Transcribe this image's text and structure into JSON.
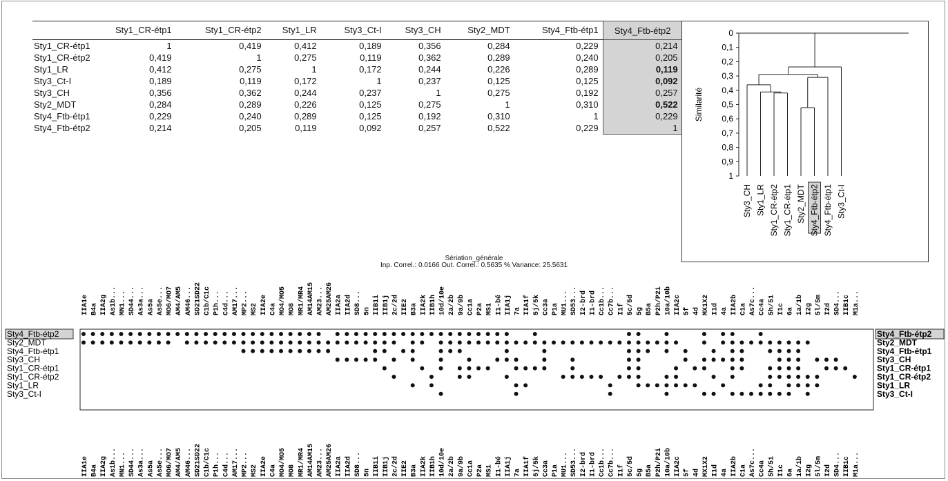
{
  "table": {
    "columns": [
      "Sty1_CR-étp1",
      "Sty1_CR-étp2",
      "Sty1_LR",
      "Sty3_Ct-I",
      "Sty3_CH",
      "Sty2_MDT",
      "Sty4_Ftb-étp1",
      "Sty4_Ftb-étp2"
    ],
    "highlight_column": 7,
    "rows": [
      {
        "label": "Sty1_CR-étp1",
        "cells": [
          "1",
          "0,419",
          "0,412",
          "0,189",
          "0,356",
          "0,284",
          "0,229",
          "0,214"
        ]
      },
      {
        "label": "Sty1_CR-étp2",
        "cells": [
          "0,419",
          "1",
          "0,275",
          "0,119",
          "0,362",
          "0,289",
          "0,240",
          "0,205"
        ]
      },
      {
        "label": "Sty1_LR",
        "cells": [
          "0,412",
          "0,275",
          "1",
          "0,172",
          "0,244",
          "0,226",
          "0,289",
          "0,119"
        ]
      },
      {
        "label": "Sty3_Ct-I",
        "cells": [
          "0,189",
          "0,119",
          "0,172",
          "1",
          "0,237",
          "0,125",
          "0,125",
          "0,092"
        ]
      },
      {
        "label": "Sty3_CH",
        "cells": [
          "0,356",
          "0,362",
          "0,244",
          "0,237",
          "1",
          "0,275",
          "0,192",
          "0,257"
        ]
      },
      {
        "label": "Sty2_MDT",
        "cells": [
          "0,284",
          "0,289",
          "0,226",
          "0,125",
          "0,275",
          "1",
          "0,310",
          "0,522"
        ]
      },
      {
        "label": "Sty4_Ftb-étp1",
        "cells": [
          "0,229",
          "0,240",
          "0,289",
          "0,125",
          "0,192",
          "0,310",
          "1",
          "0,229"
        ]
      },
      {
        "label": "Sty4_Ftb-étp2",
        "cells": [
          "0,214",
          "0,205",
          "0,119",
          "0,092",
          "0,257",
          "0,522",
          "0,229",
          "1"
        ]
      }
    ],
    "bold_in_highlight": [
      2,
      3,
      5
    ]
  },
  "chart_data": [
    {
      "type": "dendrogram",
      "ylabel": "Similarité",
      "ylim": [
        0,
        1
      ],
      "yticks": [
        "0",
        "0,1",
        "0,2",
        "0,3",
        "0,4",
        "0,5",
        "0,6",
        "0,7",
        "0,8",
        "0,9",
        "1"
      ],
      "leaves": [
        "Sty3_CH",
        "Sty1_LR",
        "Sty1_CR-étp2",
        "Sty1_CR-étp1",
        "Sty2_MDT",
        "Sty4_Ftb-étp2",
        "Sty4_Ftb-étp1",
        "Sty3_Ct-I"
      ],
      "highlight_leaf": "Sty4_Ftb-étp2",
      "merges": [
        {
          "left": "Sty1_CR-étp2",
          "right": "Sty1_CR-étp1",
          "height": 0.419
        },
        {
          "left": "Sty1_LR",
          "right": "c1",
          "height": 0.412
        },
        {
          "left": "Sty3_CH",
          "right": "c2",
          "height": 0.362
        },
        {
          "left": "Sty2_MDT",
          "right": "Sty4_Ftb-étp2",
          "height": 0.522
        },
        {
          "left": "c4",
          "right": "Sty4_Ftb-étp1",
          "height": 0.31
        },
        {
          "left": "c3",
          "right": "c5",
          "height": 0.289
        },
        {
          "left": "c6",
          "right": "Sty3_Ct-I",
          "height": 0.237
        }
      ]
    },
    {
      "type": "seriation",
      "title": "Sériation_générale",
      "subtitle": "Inp. Correl.: 0.0166 Out. Correl.: 0.5635 % Variance: 25.5631",
      "highlight_row": "Sty4_Ftb-étp2",
      "columns": [
        "IIA1e",
        "B4a",
        "IIA2g",
        "As1b...",
        "MN1...",
        "SD44...",
        "As3a...",
        "As5a",
        "As5e...",
        "MO6/MO7",
        "AM4/AM5",
        "AM46...",
        "SD21SD22",
        "C1b/C1c",
        "P1h...",
        "C4d...",
        "AM17...",
        "MP2...",
        "MS2",
        "IIA2e",
        "C4a",
        "MO4/MO5",
        "MO8",
        "MR1/MR4",
        "AM14AM15",
        "AM23...",
        "AM25AM26",
        "IIA2a",
        "IIA2d",
        "SD8...",
        "5n",
        "IIB1i",
        "IIB1j",
        "2c/2d",
        "IIE2",
        "B3a",
        "IIA2k",
        "IIB1h",
        "10d/10e",
        "2a/2b",
        "9a/9b",
        "Cc1a",
        "P2a",
        "MS1",
        "I1-bé",
        "IIA1j",
        "7a",
        "IIA1f",
        "5j/5k",
        "Cc3a",
        "P1a",
        "MU1...",
        "SD53...",
        "I2-brd",
        "I1-brd",
        "Cc1b...",
        "Cc7b...",
        "I1f",
        "5c/5d",
        "5g",
        "B5a",
        "P2h/P2i",
        "10a/10b",
        "IIA2c",
        "5f",
        "4d",
        "MX1X2",
        "I1d",
        "4a",
        "IIA2b",
        "C1a",
        "As7c...",
        "Cc4a",
        "5h/5i",
        "I1c",
        "6a",
        "1a/1b",
        "I2g",
        "5l/5m",
        "I2d",
        "SD4...",
        "IIB1c",
        "M1a..."
      ],
      "rows": [
        {
          "name": "Sty4_Ftb-étp2",
          "cols": [
            0,
            1,
            2,
            3,
            4,
            5,
            6,
            7,
            8,
            9,
            10,
            11,
            12,
            13,
            14,
            15,
            16,
            17,
            18,
            19,
            20,
            21,
            22,
            23,
            24,
            25,
            27,
            28,
            29,
            30,
            31,
            32,
            33,
            34,
            35,
            36,
            37,
            38,
            39,
            40,
            41,
            42,
            43,
            44,
            45,
            48,
            58,
            59,
            62,
            66,
            68,
            69,
            72
          ]
        },
        {
          "name": "Sty2_MDT",
          "cols": [
            0,
            1,
            2,
            3,
            4,
            5,
            6,
            7,
            8,
            9,
            11,
            12,
            13,
            14,
            15,
            16,
            17,
            18,
            19,
            20,
            21,
            22,
            23,
            24,
            25,
            26,
            27,
            28,
            29,
            30,
            31,
            32,
            33,
            35,
            36,
            38,
            39,
            40,
            41,
            42,
            43,
            44,
            45,
            46,
            47,
            48,
            49,
            50,
            51,
            52,
            53,
            54,
            55,
            56,
            57,
            58,
            59,
            60,
            61,
            62,
            63,
            66,
            68,
            69,
            70,
            71,
            72,
            73,
            74,
            75,
            76,
            77
          ]
        },
        {
          "name": "Sty4_Ftb-étp1",
          "cols": [
            17,
            18,
            19,
            20,
            21,
            22,
            23,
            24,
            25,
            26,
            31,
            32,
            34,
            35,
            38,
            39,
            40,
            45,
            49,
            58,
            59,
            60,
            62,
            64,
            67,
            69,
            70,
            73,
            74,
            75,
            76
          ]
        },
        {
          "name": "Sty3_CH",
          "cols": [
            27,
            28,
            29,
            30,
            31,
            33,
            35,
            38,
            41,
            44,
            45,
            46,
            49,
            52,
            58,
            59,
            64,
            66,
            67,
            68,
            69,
            70,
            74,
            75,
            76,
            78,
            79,
            80
          ]
        },
        {
          "name": "Sty1_CR-étp1",
          "cols": [
            32,
            36,
            38,
            40,
            41,
            42,
            43,
            46,
            47,
            48,
            49,
            52,
            58,
            59,
            63,
            65,
            66,
            69,
            70,
            73,
            74,
            75,
            76,
            79,
            80,
            81
          ]
        },
        {
          "name": "Sty1_CR-étp2",
          "cols": [
            33,
            37,
            40,
            41,
            45,
            51,
            52,
            53,
            54,
            55,
            57,
            58,
            59,
            62,
            63,
            67,
            69,
            73,
            74,
            75,
            76,
            77,
            78,
            82
          ]
        },
        {
          "name": "Sty1_LR",
          "cols": [
            35,
            37,
            46,
            47,
            56,
            59,
            60,
            61,
            62,
            63,
            64,
            65,
            68,
            72,
            73,
            75,
            76,
            77,
            78
          ]
        },
        {
          "name": "Sty3_Ct-I",
          "cols": [
            38,
            46,
            56,
            62,
            66,
            67,
            69,
            70,
            71,
            72,
            73,
            74,
            75,
            77
          ]
        }
      ]
    }
  ]
}
